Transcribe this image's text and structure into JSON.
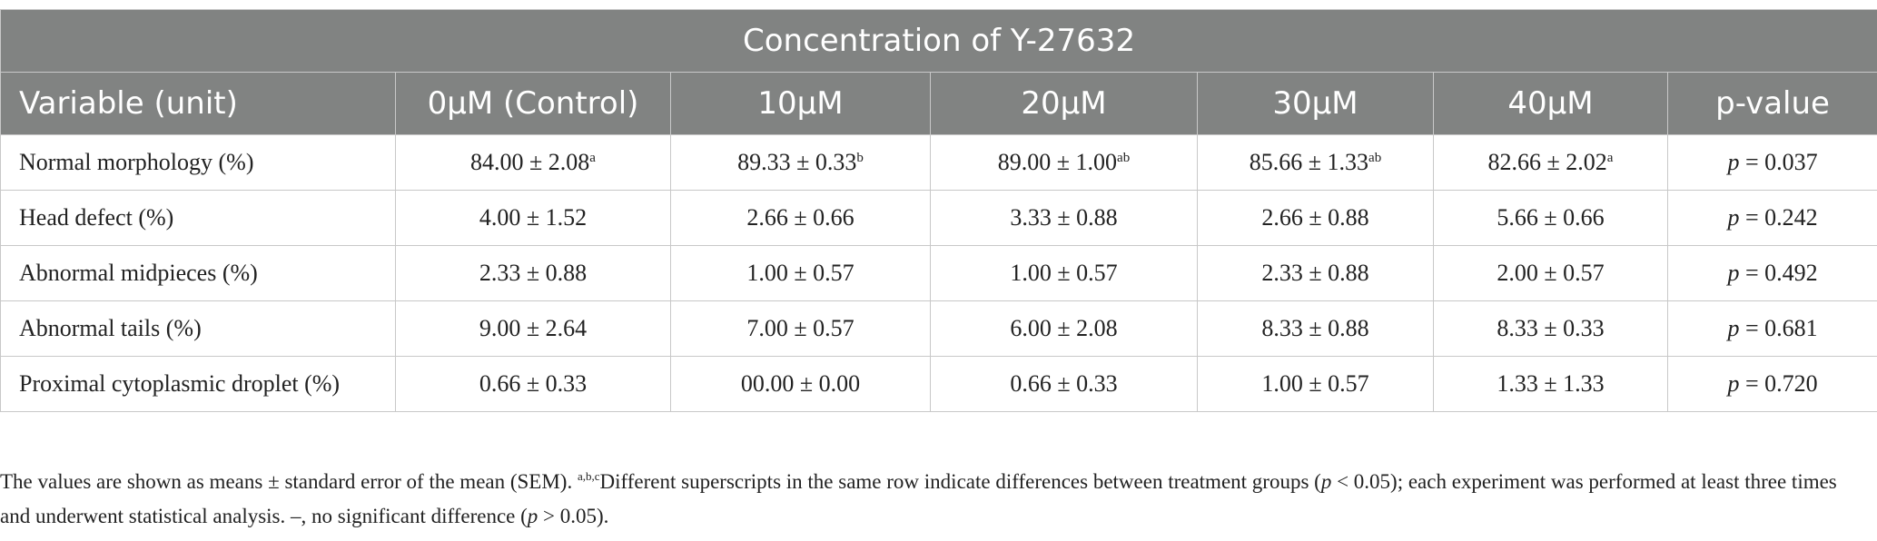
{
  "table": {
    "group_header": "Concentration of Y-27632",
    "columns": [
      "Variable (unit)",
      "0μM (Control)",
      "10μM",
      "20μM",
      "30μM",
      "40μM",
      "p-value"
    ],
    "rows": [
      [
        {
          "text": "Normal morphology (%)"
        },
        {
          "text": "84.00 ± 2.08",
          "sup": "a"
        },
        {
          "text": "89.33 ± 0.33",
          "sup": "b"
        },
        {
          "text": "89.00 ± 1.00",
          "sup": "ab"
        },
        {
          "text": "85.66 ± 1.33",
          "sup": "ab"
        },
        {
          "text": "82.66 ± 2.02",
          "sup": "a"
        },
        {
          "italic": "p",
          "text": " = 0.037"
        }
      ],
      [
        {
          "text": "Head defect (%)"
        },
        {
          "text": "4.00 ± 1.52"
        },
        {
          "text": "2.66 ± 0.66"
        },
        {
          "text": "3.33 ± 0.88"
        },
        {
          "text": "2.66 ± 0.88"
        },
        {
          "text": "5.66 ± 0.66"
        },
        {
          "italic": "p",
          "text": " = 0.242"
        }
      ],
      [
        {
          "text": "Abnormal midpieces (%)"
        },
        {
          "text": "2.33 ± 0.88"
        },
        {
          "text": "1.00 ± 0.57"
        },
        {
          "text": "1.00 ± 0.57"
        },
        {
          "text": "2.33 ± 0.88"
        },
        {
          "text": "2.00 ± 0.57"
        },
        {
          "italic": "p",
          "text": " = 0.492"
        }
      ],
      [
        {
          "text": "Abnormal tails (%)"
        },
        {
          "text": "9.00 ± 2.64"
        },
        {
          "text": "7.00 ± 0.57"
        },
        {
          "text": "6.00 ± 2.08"
        },
        {
          "text": "8.33 ± 0.88"
        },
        {
          "text": "8.33 ± 0.33"
        },
        {
          "italic": "p",
          "text": " = 0.681"
        }
      ],
      [
        {
          "text": "Proximal cytoplasmic droplet (%)"
        },
        {
          "text": "0.66 ± 0.33"
        },
        {
          "text": "00.00 ± 0.00"
        },
        {
          "text": "0.66 ± 0.33"
        },
        {
          "text": "1.00 ± 0.57"
        },
        {
          "text": "1.33 ± 1.33"
        },
        {
          "italic": "p",
          "text": " = 0.720"
        }
      ]
    ]
  },
  "footnote": [
    {
      "style": "normal",
      "text": "The values are shown as means ± standard error of the mean (SEM). "
    },
    {
      "style": "sup",
      "text": "a,b,c"
    },
    {
      "style": "normal",
      "text": "Different superscripts in the same row indicate differences between treatment groups ("
    },
    {
      "style": "italic",
      "text": "p"
    },
    {
      "style": "normal",
      "text": " < 0.05); each experiment was performed at least three times and underwent statistical analysis. –, no significant difference ("
    },
    {
      "style": "italic",
      "text": "p"
    },
    {
      "style": "normal",
      "text": " > 0.05)."
    }
  ]
}
